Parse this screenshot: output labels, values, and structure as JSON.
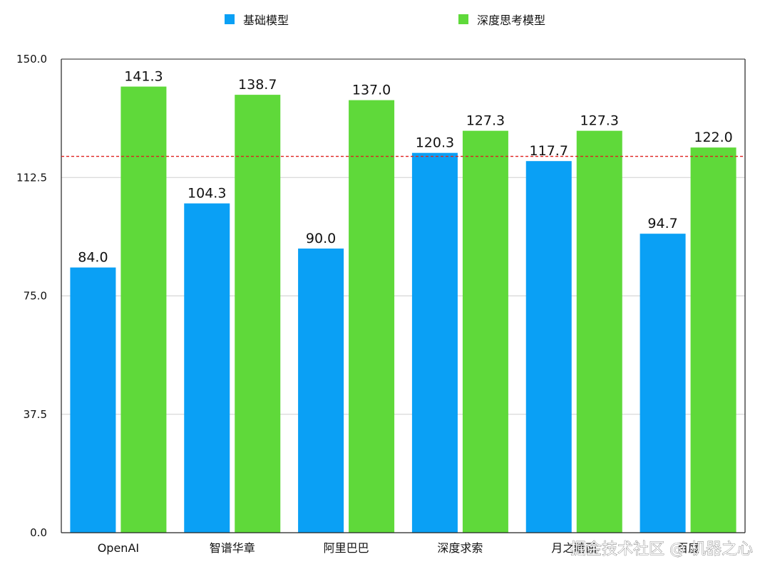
{
  "chart_data": {
    "type": "bar",
    "categories": [
      "OpenAI",
      "智谱华章",
      "阿里巴巴",
      "深度求索",
      "月之暗面",
      "百度"
    ],
    "series": [
      {
        "name": "基础模型",
        "color": "#0aa0f5",
        "values": [
          84.0,
          104.3,
          90.0,
          120.3,
          117.7,
          94.7
        ]
      },
      {
        "name": "深度思考模型",
        "color": "#5fd93a",
        "values": [
          141.3,
          138.7,
          137.0,
          127.3,
          127.3,
          122.0
        ]
      }
    ],
    "value_labels": [
      [
        "84.0",
        "104.3",
        "90.0",
        "120.3",
        "117.7",
        "94.7"
      ],
      [
        "141.3",
        "138.7",
        "137.0",
        "127.3",
        "127.3",
        "122.0"
      ]
    ],
    "ylim": [
      0,
      150
    ],
    "yticks": [
      "0.0",
      "37.5",
      "75.0",
      "112.5",
      "150.0"
    ],
    "reference_line": {
      "value": 119.2,
      "color": "#e02020",
      "style": "dashed"
    },
    "grid": true,
    "legend_position": "top-center"
  },
  "watermark": "掘金技术社区 @ 机器之心"
}
